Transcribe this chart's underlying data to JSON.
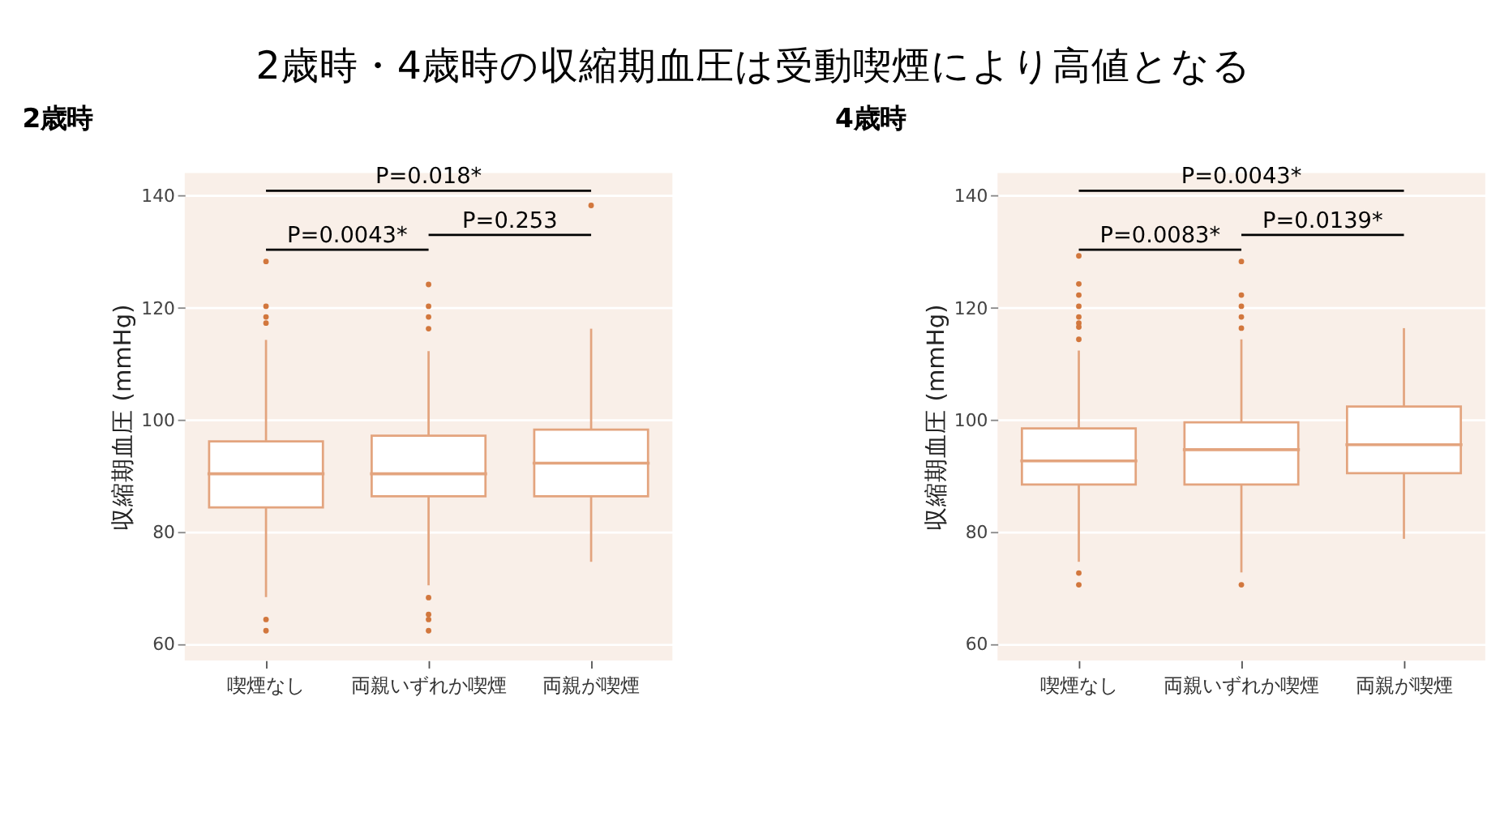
{
  "chart_data": [
    {
      "type": "box",
      "title": "2歳時・4歳時の収縮期血圧は受動喫煙により高値となる",
      "subtitle": "2歳時",
      "ylabel": "収縮期血圧 (mmHg)",
      "categories": [
        "喫煙なし",
        "両親いずれか喫煙",
        "両親が喫煙"
      ],
      "color": "#e3a47e",
      "ylim": [
        57,
        144
      ],
      "yticks": [
        60,
        80,
        100,
        120,
        140
      ],
      "grid": true,
      "boxes": [
        {
          "low": 68.3,
          "q1": 84.3,
          "median": 90.3,
          "q3": 96.1,
          "high": 114.2,
          "outliers": [
            128.2,
            120.2,
            118.3,
            117.2,
            64.3,
            62.3
          ]
        },
        {
          "low": 70.4,
          "q1": 86.3,
          "median": 90.3,
          "q3": 97.1,
          "high": 112.2,
          "outliers": [
            124.1,
            120.2,
            118.3,
            116.2,
            68.2,
            65.2,
            64.3,
            62.3
          ]
        },
        {
          "low": 74.6,
          "q1": 86.3,
          "median": 92.2,
          "q3": 98.2,
          "high": 116.2,
          "outliers": [
            138.2
          ]
        }
      ],
      "annotations": [
        "P=0.018*",
        "P=0.0043*",
        "P=0.253"
      ]
    },
    {
      "type": "box",
      "subtitle": "4歳時",
      "ylabel": "収縮期血圧 (mmHg)",
      "categories": [
        "喫煙なし",
        "両親いずれか喫煙",
        "両親が喫煙"
      ],
      "color": "#e3a47e",
      "ylim": [
        57,
        144
      ],
      "yticks": [
        60,
        80,
        100,
        120,
        140
      ],
      "grid": true,
      "boxes": [
        {
          "low": 74.6,
          "q1": 88.4,
          "median": 92.6,
          "q3": 98.4,
          "high": 112.3,
          "outliers": [
            129.2,
            124.2,
            122.2,
            120.2,
            118.3,
            117.2,
            116.5,
            114.3,
            72.6,
            70.5
          ]
        },
        {
          "low": 72.7,
          "q1": 88.4,
          "median": 94.6,
          "q3": 99.5,
          "high": 114.3,
          "outliers": [
            128.2,
            122.2,
            120.2,
            118.3,
            116.3,
            70.5
          ]
        },
        {
          "low": 78.7,
          "q1": 90.4,
          "median": 95.5,
          "q3": 102.3,
          "high": 116.3
        }
      ],
      "annotations": [
        "P=0.0043*",
        "P=0.0083*",
        "P=0.0139*"
      ]
    }
  ]
}
